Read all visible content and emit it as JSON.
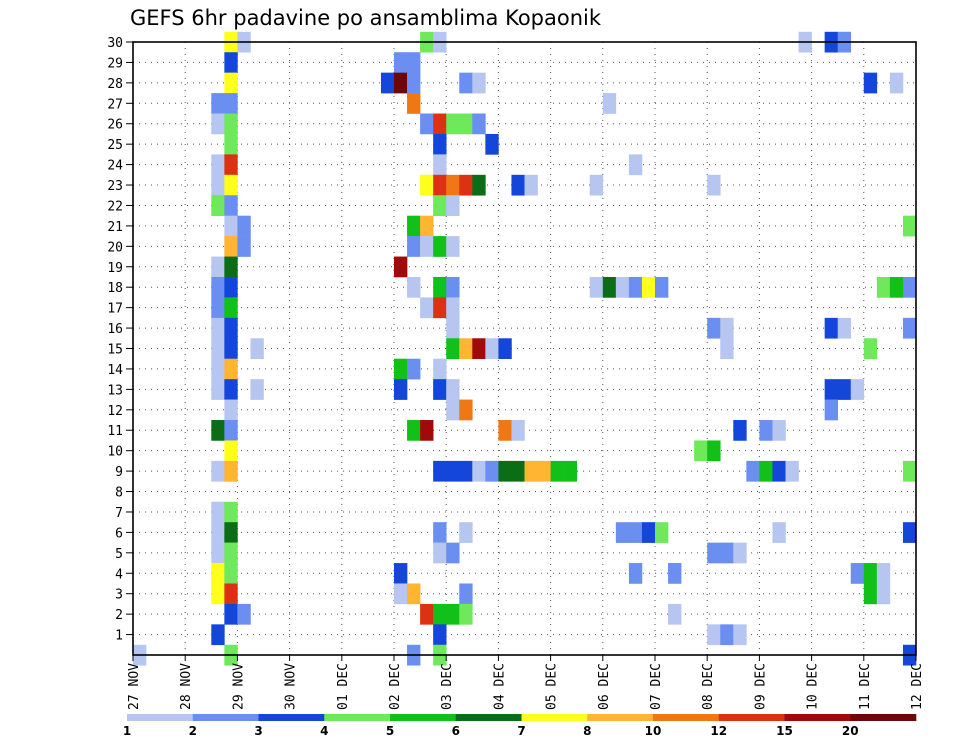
{
  "chart_data": {
    "type": "heatmap",
    "title": "GEFS 6hr padavine po ansamblima Kopaonik",
    "xlabel": "",
    "ylabel": "",
    "x_ticks": [
      "27 NOV",
      "28 NOV",
      "29 NOV",
      "30 NOV",
      "01 DEC",
      "02 DEC",
      "03 DEC",
      "04 DEC",
      "05 DEC",
      "06 DEC",
      "07 DEC",
      "08 DEC",
      "09 DEC",
      "10 DEC",
      "11 DEC",
      "12 DEC"
    ],
    "y_ticks": [
      1,
      2,
      3,
      4,
      5,
      6,
      7,
      8,
      9,
      10,
      11,
      12,
      13,
      14,
      15,
      16,
      17,
      18,
      19,
      20,
      21,
      22,
      23,
      24,
      25,
      26,
      27,
      28,
      29,
      30
    ],
    "x_range": [
      0,
      60
    ],
    "y_range": [
      0,
      30
    ],
    "time_step": "6hr",
    "grid": true,
    "legend_position": "bottom",
    "colorbar": {
      "colors": [
        "#b7c6f0",
        "#6a8ff0",
        "#1446d9",
        "#6fe85c",
        "#11c11a",
        "#0b6e16",
        "#ffff1e",
        "#ffb432",
        "#f07814",
        "#dc3214",
        "#a00a0a",
        "#6e0808"
      ],
      "labels": [
        "1",
        "2",
        "3",
        "4",
        "5",
        "6",
        "7",
        "8",
        "10",
        "12",
        "15",
        "20"
      ]
    },
    "cells": [
      {
        "member": 30,
        "t": 7.5,
        "v": 7
      },
      {
        "member": 30,
        "t": 8.5,
        "v": 1
      },
      {
        "member": 30,
        "t": 22.5,
        "v": 4
      },
      {
        "member": 30,
        "t": 23.5,
        "v": 1
      },
      {
        "member": 30,
        "t": 51.5,
        "v": 1
      },
      {
        "member": 30,
        "t": 53.5,
        "v": 3
      },
      {
        "member": 30,
        "t": 54.5,
        "v": 2
      },
      {
        "member": 29,
        "t": 7.5,
        "v": 3
      },
      {
        "member": 29,
        "t": 20.5,
        "v": 2
      },
      {
        "member": 29,
        "t": 21.5,
        "v": 2
      },
      {
        "member": 28,
        "t": 7.5,
        "v": 7
      },
      {
        "member": 28,
        "t": 19.5,
        "v": 3
      },
      {
        "member": 28,
        "t": 20.5,
        "v": 20
      },
      {
        "member": 28,
        "t": 21.5,
        "v": 2
      },
      {
        "member": 28,
        "t": 25.5,
        "v": 2
      },
      {
        "member": 28,
        "t": 26.5,
        "v": 1
      },
      {
        "member": 28,
        "t": 56.5,
        "v": 3
      },
      {
        "member": 28,
        "t": 58.5,
        "v": 1
      },
      {
        "member": 27,
        "t": 6.5,
        "v": 2
      },
      {
        "member": 27,
        "t": 7.5,
        "v": 2
      },
      {
        "member": 27,
        "t": 21.5,
        "v": 10
      },
      {
        "member": 27,
        "t": 36.5,
        "v": 1
      },
      {
        "member": 26,
        "t": 6.5,
        "v": 1
      },
      {
        "member": 26,
        "t": 7.5,
        "v": 4
      },
      {
        "member": 26,
        "t": 22.5,
        "v": 2
      },
      {
        "member": 26,
        "t": 23.5,
        "v": 12
      },
      {
        "member": 26,
        "t": 24.5,
        "v": 4
      },
      {
        "member": 26,
        "t": 25.5,
        "v": 4
      },
      {
        "member": 26,
        "t": 26.5,
        "v": 2
      },
      {
        "member": 25,
        "t": 7.5,
        "v": 4
      },
      {
        "member": 25,
        "t": 23.5,
        "v": 3
      },
      {
        "member": 25,
        "t": 27.5,
        "v": 3
      },
      {
        "member": 24,
        "t": 6.5,
        "v": 1
      },
      {
        "member": 24,
        "t": 7.5,
        "v": 12
      },
      {
        "member": 24,
        "t": 23.5,
        "v": 1
      },
      {
        "member": 24,
        "t": 38.5,
        "v": 1
      },
      {
        "member": 23,
        "t": 6.5,
        "v": 1
      },
      {
        "member": 23,
        "t": 7.5,
        "v": 7
      },
      {
        "member": 23,
        "t": 22.5,
        "v": 7
      },
      {
        "member": 23,
        "t": 23.5,
        "v": 12
      },
      {
        "member": 23,
        "t": 24.5,
        "v": 10
      },
      {
        "member": 23,
        "t": 25.5,
        "v": 12
      },
      {
        "member": 23,
        "t": 26.5,
        "v": 6
      },
      {
        "member": 23,
        "t": 29.5,
        "v": 3
      },
      {
        "member": 23,
        "t": 30.5,
        "v": 1
      },
      {
        "member": 23,
        "t": 35.5,
        "v": 1
      },
      {
        "member": 23,
        "t": 44.5,
        "v": 1
      },
      {
        "member": 22,
        "t": 6.5,
        "v": 4
      },
      {
        "member": 22,
        "t": 7.5,
        "v": 2
      },
      {
        "member": 22,
        "t": 23.5,
        "v": 4
      },
      {
        "member": 22,
        "t": 24.5,
        "v": 1
      },
      {
        "member": 21,
        "t": 7.5,
        "v": 1
      },
      {
        "member": 21,
        "t": 8.5,
        "v": 2
      },
      {
        "member": 21,
        "t": 21.5,
        "v": 5
      },
      {
        "member": 21,
        "t": 22.5,
        "v": 8
      },
      {
        "member": 21,
        "t": 59.5,
        "v": 4
      },
      {
        "member": 20,
        "t": 7.5,
        "v": 8
      },
      {
        "member": 20,
        "t": 8.5,
        "v": 2
      },
      {
        "member": 20,
        "t": 21.5,
        "v": 2
      },
      {
        "member": 20,
        "t": 22.5,
        "v": 1
      },
      {
        "member": 20,
        "t": 23.5,
        "v": 5
      },
      {
        "member": 20,
        "t": 24.5,
        "v": 1
      },
      {
        "member": 19,
        "t": 6.5,
        "v": 1
      },
      {
        "member": 19,
        "t": 7.5,
        "v": 6
      },
      {
        "member": 19,
        "t": 20.5,
        "v": 15
      },
      {
        "member": 18,
        "t": 6.5,
        "v": 2
      },
      {
        "member": 18,
        "t": 7.5,
        "v": 3
      },
      {
        "member": 18,
        "t": 21.5,
        "v": 1
      },
      {
        "member": 18,
        "t": 23.5,
        "v": 5
      },
      {
        "member": 18,
        "t": 24.5,
        "v": 2
      },
      {
        "member": 18,
        "t": 35.5,
        "v": 1
      },
      {
        "member": 18,
        "t": 36.5,
        "v": 6
      },
      {
        "member": 18,
        "t": 37.5,
        "v": 1
      },
      {
        "member": 18,
        "t": 38.5,
        "v": 2
      },
      {
        "member": 18,
        "t": 39.5,
        "v": 7
      },
      {
        "member": 18,
        "t": 40.5,
        "v": 2
      },
      {
        "member": 18,
        "t": 57.5,
        "v": 4
      },
      {
        "member": 18,
        "t": 58.5,
        "v": 5
      },
      {
        "member": 18,
        "t": 59.5,
        "v": 2
      },
      {
        "member": 17,
        "t": 6.5,
        "v": 2
      },
      {
        "member": 17,
        "t": 7.5,
        "v": 5
      },
      {
        "member": 17,
        "t": 22.5,
        "v": 1
      },
      {
        "member": 17,
        "t": 23.5,
        "v": 12
      },
      {
        "member": 17,
        "t": 24.5,
        "v": 1
      },
      {
        "member": 16,
        "t": 6.5,
        "v": 1
      },
      {
        "member": 16,
        "t": 7.5,
        "v": 3
      },
      {
        "member": 16,
        "t": 24.5,
        "v": 1
      },
      {
        "member": 16,
        "t": 44.5,
        "v": 2
      },
      {
        "member": 16,
        "t": 45.5,
        "v": 1
      },
      {
        "member": 16,
        "t": 53.5,
        "v": 3
      },
      {
        "member": 16,
        "t": 54.5,
        "v": 1
      },
      {
        "member": 16,
        "t": 59.5,
        "v": 2
      },
      {
        "member": 15,
        "t": 6.5,
        "v": 1
      },
      {
        "member": 15,
        "t": 7.5,
        "v": 3
      },
      {
        "member": 15,
        "t": 9.5,
        "v": 1
      },
      {
        "member": 15,
        "t": 24.5,
        "v": 5
      },
      {
        "member": 15,
        "t": 25.5,
        "v": 8
      },
      {
        "member": 15,
        "t": 26.5,
        "v": 15
      },
      {
        "member": 15,
        "t": 27.5,
        "v": 1
      },
      {
        "member": 15,
        "t": 28.5,
        "v": 3
      },
      {
        "member": 15,
        "t": 45.5,
        "v": 1
      },
      {
        "member": 15,
        "t": 56.5,
        "v": 4
      },
      {
        "member": 14,
        "t": 6.5,
        "v": 1
      },
      {
        "member": 14,
        "t": 7.5,
        "v": 8
      },
      {
        "member": 14,
        "t": 20.5,
        "v": 5
      },
      {
        "member": 14,
        "t": 21.5,
        "v": 2
      },
      {
        "member": 14,
        "t": 23.5,
        "v": 1
      },
      {
        "member": 13,
        "t": 6.5,
        "v": 1
      },
      {
        "member": 13,
        "t": 7.5,
        "v": 3
      },
      {
        "member": 13,
        "t": 9.5,
        "v": 1
      },
      {
        "member": 13,
        "t": 20.5,
        "v": 3
      },
      {
        "member": 13,
        "t": 23.5,
        "v": 3
      },
      {
        "member": 13,
        "t": 24.5,
        "v": 1
      },
      {
        "member": 13,
        "t": 53.5,
        "v": 3
      },
      {
        "member": 13,
        "t": 54.5,
        "v": 3
      },
      {
        "member": 13,
        "t": 55.5,
        "v": 1
      },
      {
        "member": 12,
        "t": 7.5,
        "v": 1
      },
      {
        "member": 12,
        "t": 24.5,
        "v": 1
      },
      {
        "member": 12,
        "t": 25.5,
        "v": 10
      },
      {
        "member": 12,
        "t": 53.5,
        "v": 2
      },
      {
        "member": 11,
        "t": 6.5,
        "v": 6
      },
      {
        "member": 11,
        "t": 7.5,
        "v": 2
      },
      {
        "member": 11,
        "t": 21.5,
        "v": 5
      },
      {
        "member": 11,
        "t": 22.5,
        "v": 15
      },
      {
        "member": 11,
        "t": 28.5,
        "v": 10
      },
      {
        "member": 11,
        "t": 29.5,
        "v": 1
      },
      {
        "member": 11,
        "t": 46.5,
        "v": 3
      },
      {
        "member": 11,
        "t": 48.5,
        "v": 2
      },
      {
        "member": 11,
        "t": 49.5,
        "v": 1
      },
      {
        "member": 10,
        "t": 7.5,
        "v": 7
      },
      {
        "member": 10,
        "t": 43.5,
        "v": 4
      },
      {
        "member": 10,
        "t": 44.5,
        "v": 5
      },
      {
        "member": 9,
        "t": 6.5,
        "v": 1
      },
      {
        "member": 9,
        "t": 7.5,
        "v": 8
      },
      {
        "member": 9,
        "t": 23.5,
        "v": 3
      },
      {
        "member": 9,
        "t": 24.5,
        "v": 3
      },
      {
        "member": 9,
        "t": 25.5,
        "v": 3
      },
      {
        "member": 9,
        "t": 26.5,
        "v": 1
      },
      {
        "member": 9,
        "t": 27.5,
        "v": 2
      },
      {
        "member": 9,
        "t": 28.5,
        "v": 6
      },
      {
        "member": 9,
        "t": 29.5,
        "v": 6
      },
      {
        "member": 9,
        "t": 30.5,
        "v": 8
      },
      {
        "member": 9,
        "t": 31.5,
        "v": 8
      },
      {
        "member": 9,
        "t": 32.5,
        "v": 5
      },
      {
        "member": 9,
        "t": 33.5,
        "v": 5
      },
      {
        "member": 9,
        "t": 47.5,
        "v": 2
      },
      {
        "member": 9,
        "t": 48.5,
        "v": 5
      },
      {
        "member": 9,
        "t": 49.5,
        "v": 3
      },
      {
        "member": 9,
        "t": 50.5,
        "v": 1
      },
      {
        "member": 9,
        "t": 59.5,
        "v": 4
      },
      {
        "member": 7,
        "t": 6.5,
        "v": 1
      },
      {
        "member": 7,
        "t": 7.5,
        "v": 4
      },
      {
        "member": 6,
        "t": 6.5,
        "v": 1
      },
      {
        "member": 6,
        "t": 7.5,
        "v": 6
      },
      {
        "member": 6,
        "t": 23.5,
        "v": 2
      },
      {
        "member": 6,
        "t": 25.5,
        "v": 1
      },
      {
        "member": 6,
        "t": 37.5,
        "v": 2
      },
      {
        "member": 6,
        "t": 38.5,
        "v": 2
      },
      {
        "member": 6,
        "t": 39.5,
        "v": 3
      },
      {
        "member": 6,
        "t": 40.5,
        "v": 4
      },
      {
        "member": 6,
        "t": 49.5,
        "v": 1
      },
      {
        "member": 6,
        "t": 59.5,
        "v": 3
      },
      {
        "member": 5,
        "t": 6.5,
        "v": 1
      },
      {
        "member": 5,
        "t": 7.5,
        "v": 4
      },
      {
        "member": 5,
        "t": 23.5,
        "v": 1
      },
      {
        "member": 5,
        "t": 24.5,
        "v": 2
      },
      {
        "member": 5,
        "t": 44.5,
        "v": 2
      },
      {
        "member": 5,
        "t": 45.5,
        "v": 2
      },
      {
        "member": 5,
        "t": 46.5,
        "v": 1
      },
      {
        "member": 4,
        "t": 6.5,
        "v": 7
      },
      {
        "member": 4,
        "t": 7.5,
        "v": 4
      },
      {
        "member": 4,
        "t": 20.5,
        "v": 3
      },
      {
        "member": 4,
        "t": 38.5,
        "v": 2
      },
      {
        "member": 4,
        "t": 41.5,
        "v": 2
      },
      {
        "member": 4,
        "t": 55.5,
        "v": 2
      },
      {
        "member": 4,
        "t": 56.5,
        "v": 5
      },
      {
        "member": 4,
        "t": 57.5,
        "v": 1
      },
      {
        "member": 3,
        "t": 6.5,
        "v": 7
      },
      {
        "member": 3,
        "t": 7.5,
        "v": 12
      },
      {
        "member": 3,
        "t": 20.5,
        "v": 1
      },
      {
        "member": 3,
        "t": 21.5,
        "v": 8
      },
      {
        "member": 3,
        "t": 25.5,
        "v": 2
      },
      {
        "member": 3,
        "t": 56.5,
        "v": 5
      },
      {
        "member": 3,
        "t": 57.5,
        "v": 1
      },
      {
        "member": 2,
        "t": 7.5,
        "v": 3
      },
      {
        "member": 2,
        "t": 8.5,
        "v": 2
      },
      {
        "member": 2,
        "t": 22.5,
        "v": 12
      },
      {
        "member": 2,
        "t": 23.5,
        "v": 5
      },
      {
        "member": 2,
        "t": 24.5,
        "v": 5
      },
      {
        "member": 2,
        "t": 25.5,
        "v": 4
      },
      {
        "member": 2,
        "t": 41.5,
        "v": 1
      },
      {
        "member": 1,
        "t": 6.5,
        "v": 3
      },
      {
        "member": 1,
        "t": 23.5,
        "v": 3
      },
      {
        "member": 1,
        "t": 44.5,
        "v": 1
      },
      {
        "member": 1,
        "t": 45.5,
        "v": 2
      },
      {
        "member": 1,
        "t": 46.5,
        "v": 1
      },
      {
        "member": 0,
        "t": 0.5,
        "v": 1
      },
      {
        "member": 0,
        "t": 7.5,
        "v": 4
      },
      {
        "member": 0,
        "t": 21.5,
        "v": 2
      },
      {
        "member": 0,
        "t": 23.5,
        "v": 4
      },
      {
        "member": 0,
        "t": 59.5,
        "v": 3
      }
    ]
  }
}
